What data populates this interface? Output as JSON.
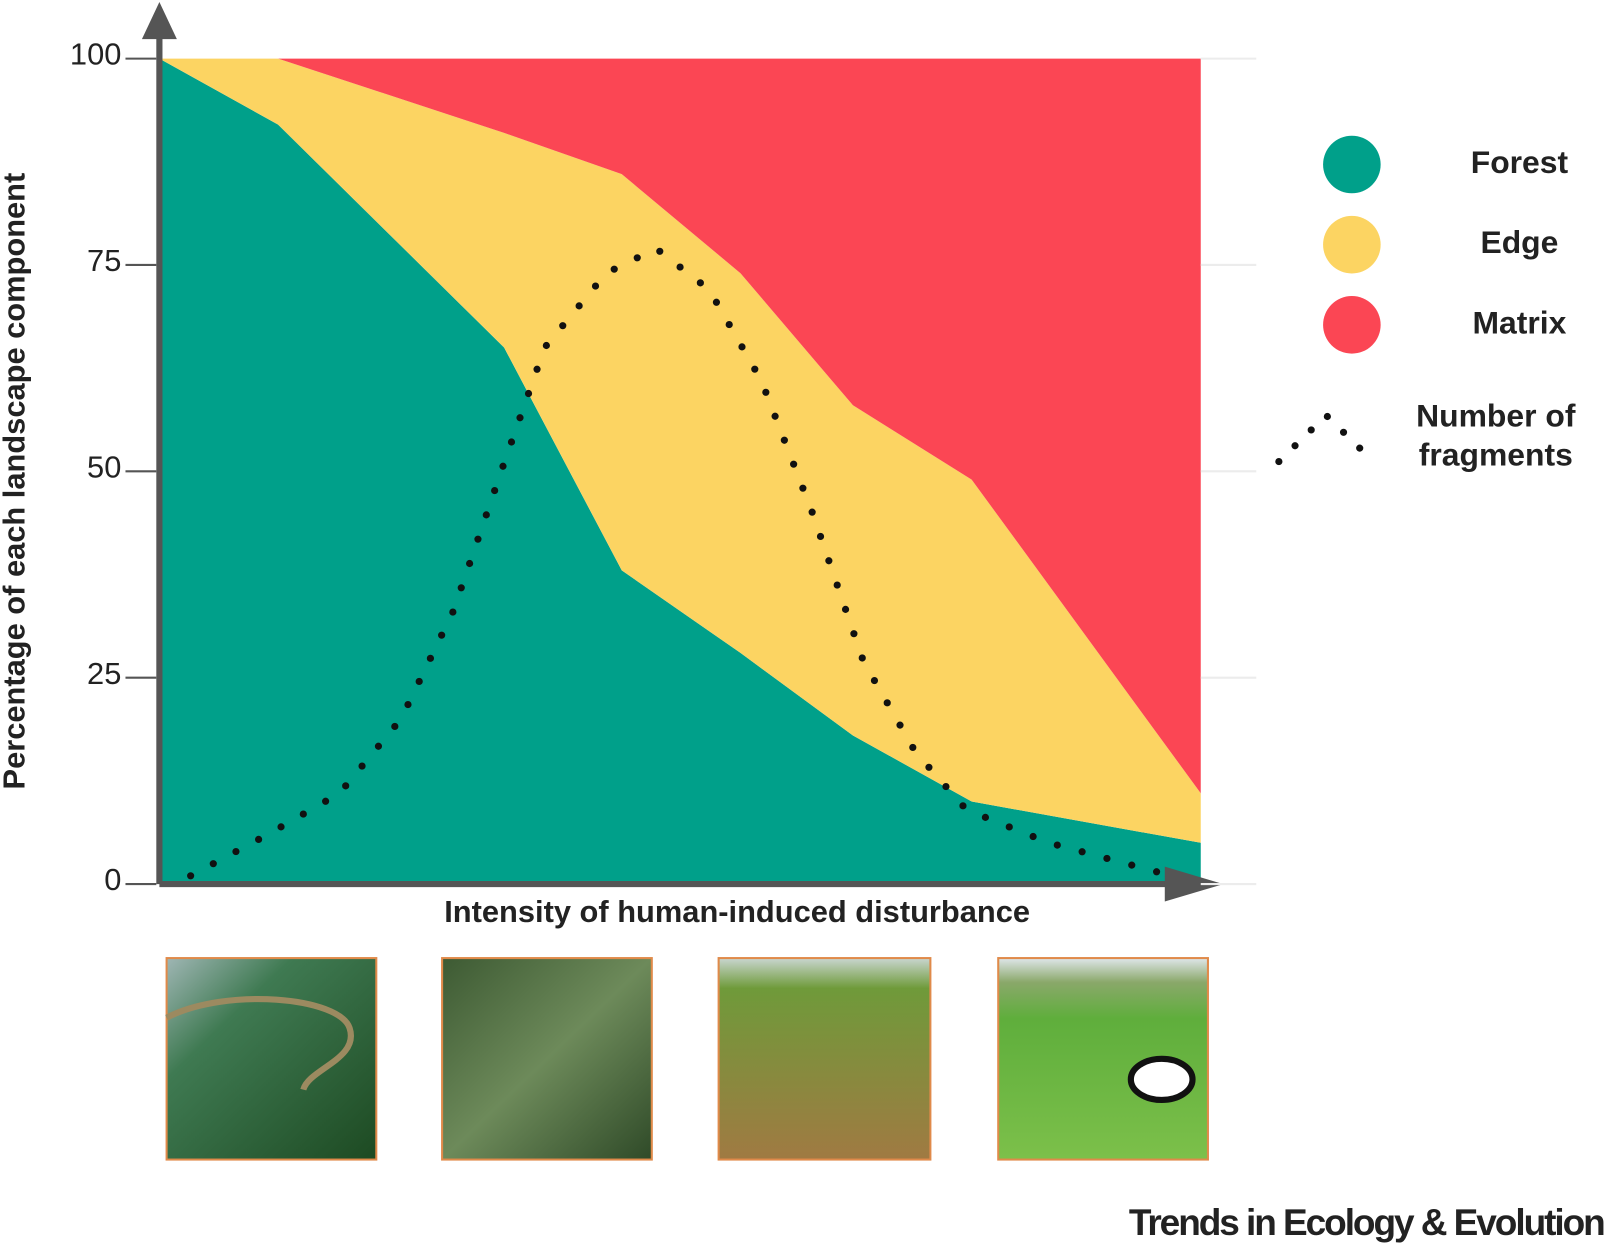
{
  "chart_data": {
    "type": "area",
    "x": [
      0,
      11.4,
      33.1,
      44.4,
      55.8,
      66.6,
      78,
      100
    ],
    "xlim": [
      0,
      100
    ],
    "ylim": [
      0,
      100
    ],
    "yticks": [
      0,
      25,
      50,
      75,
      100
    ],
    "ylabel": "Percentage of each landscape component",
    "xlabel": "Intensity of human-induced disturbance",
    "grid": true,
    "legend": "right",
    "series": [
      {
        "name": "Forest",
        "color": "#00a08a",
        "values": [
          100,
          92,
          65,
          38,
          28,
          18,
          10,
          5
        ]
      },
      {
        "name": "Edge",
        "color": "#fcd462",
        "values": [
          0,
          8,
          26,
          48,
          46,
          40,
          39,
          6
        ]
      },
      {
        "name": "Matrix",
        "color": "#fb4654",
        "values": [
          0,
          0,
          9,
          14,
          26,
          42,
          51,
          89
        ]
      },
      {
        "name": "Number of fragments",
        "type": "line",
        "style": "dotted",
        "color": "#111111",
        "x": [
          3,
          10.4,
          17.3,
          23.2,
          28.2,
          33.1,
          37,
          42.9,
          47.7,
          52.8,
          57.8,
          62.7,
          67.6,
          72.6,
          77.5,
          85.4,
          97.2
        ],
        "values": [
          1,
          6,
          11,
          20,
          33,
          51,
          65,
          74,
          77,
          72,
          61,
          45,
          27,
          16,
          9,
          5,
          1
        ]
      }
    ],
    "source": "Trends in Ecology & Evolution"
  }
}
